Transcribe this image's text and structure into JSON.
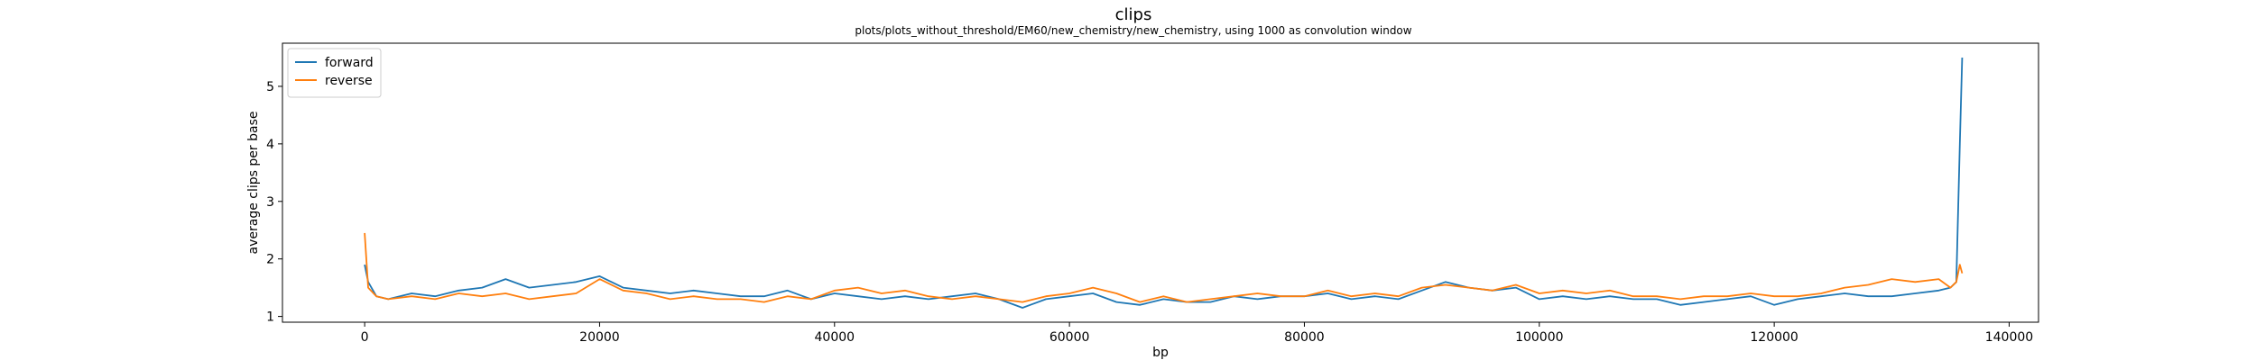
{
  "chart_data": {
    "type": "line",
    "title": "clips",
    "subtitle": "plots/plots_without_threshold/EM60/new_chemistry/new_chemistry, using 1000 as convolution window",
    "xlabel": "bp",
    "ylabel": "average clips per base",
    "xlim": [
      -7000,
      142500
    ],
    "ylim": [
      0.9,
      5.75
    ],
    "xticks": [
      0,
      20000,
      40000,
      60000,
      80000,
      100000,
      120000,
      140000
    ],
    "yticks": [
      1,
      2,
      3,
      4,
      5
    ],
    "grid": false,
    "legend": "upper left",
    "series": [
      {
        "name": "forward",
        "color": "#1f77b4",
        "x": [
          0,
          300,
          1000,
          2000,
          4000,
          6000,
          8000,
          10000,
          12000,
          14000,
          16000,
          18000,
          20000,
          22000,
          24000,
          26000,
          28000,
          30000,
          32000,
          34000,
          36000,
          38000,
          40000,
          42000,
          44000,
          46000,
          48000,
          50000,
          52000,
          54000,
          56000,
          58000,
          60000,
          62000,
          64000,
          66000,
          68000,
          70000,
          72000,
          74000,
          76000,
          78000,
          80000,
          82000,
          84000,
          86000,
          88000,
          90000,
          92000,
          94000,
          96000,
          98000,
          100000,
          102000,
          104000,
          106000,
          108000,
          110000,
          112000,
          114000,
          116000,
          118000,
          120000,
          122000,
          124000,
          126000,
          128000,
          130000,
          132000,
          134000,
          135000,
          135500,
          135800,
          136000
        ],
        "y": [
          1.9,
          1.6,
          1.35,
          1.3,
          1.4,
          1.35,
          1.45,
          1.5,
          1.65,
          1.5,
          1.55,
          1.6,
          1.7,
          1.5,
          1.45,
          1.4,
          1.45,
          1.4,
          1.35,
          1.35,
          1.45,
          1.3,
          1.4,
          1.35,
          1.3,
          1.35,
          1.3,
          1.35,
          1.4,
          1.3,
          1.15,
          1.3,
          1.35,
          1.4,
          1.25,
          1.2,
          1.3,
          1.25,
          1.25,
          1.35,
          1.3,
          1.35,
          1.35,
          1.4,
          1.3,
          1.35,
          1.3,
          1.45,
          1.6,
          1.5,
          1.45,
          1.5,
          1.3,
          1.35,
          1.3,
          1.35,
          1.3,
          1.3,
          1.2,
          1.25,
          1.3,
          1.35,
          1.2,
          1.3,
          1.35,
          1.4,
          1.35,
          1.35,
          1.4,
          1.45,
          1.5,
          1.6,
          4.0,
          5.5
        ]
      },
      {
        "name": "reverse",
        "color": "#ff7f0e",
        "x": [
          0,
          300,
          1000,
          2000,
          4000,
          6000,
          8000,
          10000,
          12000,
          14000,
          16000,
          18000,
          20000,
          22000,
          24000,
          26000,
          28000,
          30000,
          32000,
          34000,
          36000,
          38000,
          40000,
          42000,
          44000,
          46000,
          48000,
          50000,
          52000,
          54000,
          56000,
          58000,
          60000,
          62000,
          64000,
          66000,
          68000,
          70000,
          72000,
          74000,
          76000,
          78000,
          80000,
          82000,
          84000,
          86000,
          88000,
          90000,
          92000,
          94000,
          96000,
          98000,
          100000,
          102000,
          104000,
          106000,
          108000,
          110000,
          112000,
          114000,
          116000,
          118000,
          120000,
          122000,
          124000,
          126000,
          128000,
          130000,
          132000,
          134000,
          135000,
          135500,
          135800,
          136000
        ],
        "y": [
          2.45,
          1.5,
          1.35,
          1.3,
          1.35,
          1.3,
          1.4,
          1.35,
          1.4,
          1.3,
          1.35,
          1.4,
          1.65,
          1.45,
          1.4,
          1.3,
          1.35,
          1.3,
          1.3,
          1.25,
          1.35,
          1.3,
          1.45,
          1.5,
          1.4,
          1.45,
          1.35,
          1.3,
          1.35,
          1.3,
          1.25,
          1.35,
          1.4,
          1.5,
          1.4,
          1.25,
          1.35,
          1.25,
          1.3,
          1.35,
          1.4,
          1.35,
          1.35,
          1.45,
          1.35,
          1.4,
          1.35,
          1.5,
          1.55,
          1.5,
          1.45,
          1.55,
          1.4,
          1.45,
          1.4,
          1.45,
          1.35,
          1.35,
          1.3,
          1.35,
          1.35,
          1.4,
          1.35,
          1.35,
          1.4,
          1.5,
          1.55,
          1.65,
          1.6,
          1.65,
          1.5,
          1.6,
          1.9,
          1.75
        ]
      }
    ]
  }
}
